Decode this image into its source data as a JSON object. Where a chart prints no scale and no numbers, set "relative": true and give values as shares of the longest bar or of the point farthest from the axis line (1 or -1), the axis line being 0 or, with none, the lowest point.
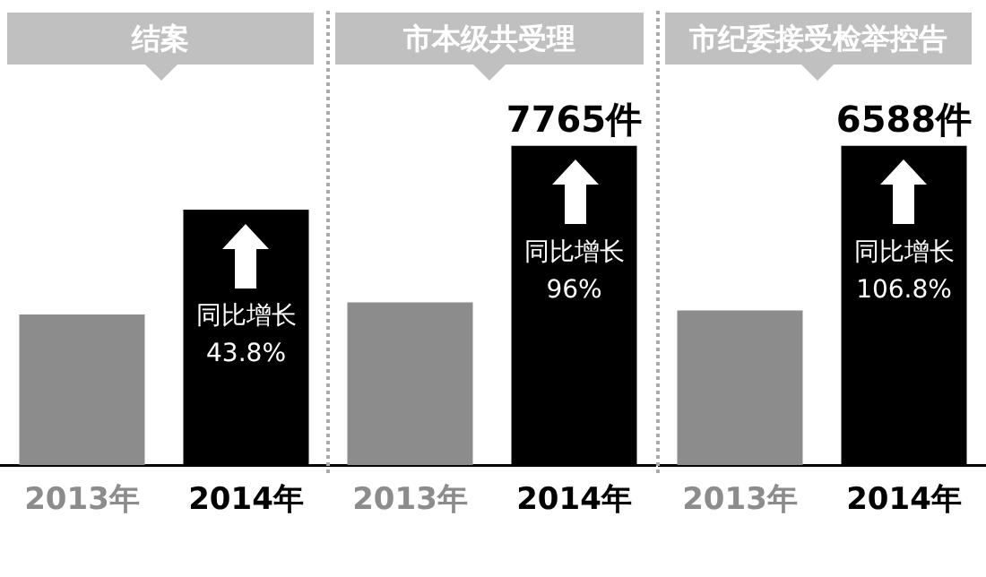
{
  "chart_data": [
    {
      "type": "bar",
      "title": "结案",
      "categories": [
        "2013年",
        "2014年"
      ],
      "values": [
        0.59,
        1
      ],
      "colors": [
        "#8c8c8c",
        "#000000"
      ],
      "relative": true,
      "annotations": [
        "同比增长\n43.8%"
      ]
    },
    {
      "type": "bar",
      "title": "市本级共受理",
      "categories": [
        "2013年",
        "2014年"
      ],
      "values": [
        3960,
        7765
      ],
      "colors": [
        "#8c8c8c",
        "#000000"
      ],
      "value_labels": [
        null,
        "7765件"
      ],
      "annotations": [
        "同比增长\n96%"
      ]
    },
    {
      "type": "bar",
      "title": "市纪委接受检举控告",
      "categories": [
        "2013年",
        "2014年"
      ],
      "values": [
        3190,
        6588
      ],
      "colors": [
        "#8c8c8c",
        "#000000"
      ],
      "value_labels": [
        null,
        "6588件"
      ],
      "annotations": [
        "同比增长\n106.8%"
      ]
    }
  ]
}
